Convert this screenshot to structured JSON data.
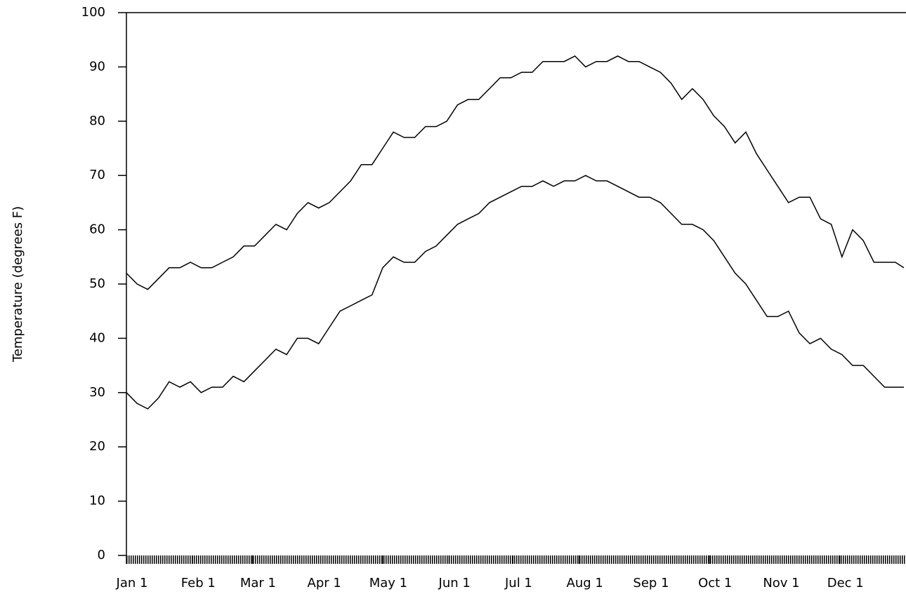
{
  "chart_data": {
    "type": "line",
    "y_label": "Temperature (degrees F)",
    "x": [
      1,
      6,
      11,
      16,
      21,
      26,
      31,
      36,
      41,
      46,
      51,
      56,
      61,
      66,
      71,
      76,
      81,
      86,
      91,
      96,
      101,
      106,
      111,
      116,
      121,
      126,
      131,
      136,
      141,
      146,
      151,
      156,
      161,
      166,
      171,
      176,
      181,
      186,
      191,
      196,
      201,
      206,
      211,
      216,
      221,
      226,
      231,
      236,
      241,
      246,
      251,
      256,
      261,
      266,
      271,
      276,
      281,
      286,
      291,
      296,
      301,
      306,
      311,
      316,
      321,
      326,
      331,
      336,
      341,
      346,
      351,
      356,
      361,
      365
    ],
    "series": [
      {
        "color": "#000000",
        "values": [
          52,
          50,
          49,
          51,
          53,
          53,
          54,
          53,
          53,
          54,
          55,
          57,
          57,
          59,
          61,
          60,
          63,
          65,
          64,
          65,
          67,
          69,
          72,
          72,
          75,
          78,
          77,
          77,
          79,
          79,
          80,
          83,
          84,
          84,
          86,
          88,
          88,
          89,
          89,
          91,
          91,
          91,
          92,
          90,
          91,
          91,
          92,
          91,
          91,
          90,
          89,
          87,
          84,
          86,
          84,
          81,
          79,
          76,
          78,
          74,
          71,
          68,
          65,
          66,
          66,
          62,
          61,
          55,
          60,
          58,
          54,
          54,
          54,
          53
        ]
      },
      {
        "color": "#000000",
        "values": [
          30,
          28,
          27,
          29,
          32,
          31,
          32,
          30,
          31,
          31,
          33,
          32,
          34,
          36,
          38,
          37,
          40,
          40,
          39,
          42,
          45,
          46,
          47,
          48,
          53,
          55,
          54,
          54,
          56,
          57,
          59,
          61,
          62,
          63,
          65,
          66,
          67,
          68,
          68,
          69,
          68,
          69,
          69,
          70,
          69,
          69,
          68,
          67,
          66,
          66,
          65,
          63,
          61,
          61,
          60,
          58,
          55,
          52,
          50,
          47,
          44,
          44,
          45,
          41,
          39,
          40,
          38,
          37,
          35,
          35,
          33,
          31,
          31,
          31
        ]
      }
    ],
    "xlim": [
      1,
      366
    ],
    "xticks": [
      {
        "value": 1,
        "label": "Jan 1"
      },
      {
        "value": 32,
        "label": "Feb 1"
      },
      {
        "value": 60,
        "label": "Mar 1"
      },
      {
        "value": 91,
        "label": "Apr 1"
      },
      {
        "value": 121,
        "label": "May 1"
      },
      {
        "value": 152,
        "label": "Jun 1"
      },
      {
        "value": 182,
        "label": "Jul 1"
      },
      {
        "value": 213,
        "label": "Aug 1"
      },
      {
        "value": 244,
        "label": "Sep 1"
      },
      {
        "value": 274,
        "label": "Oct 1"
      },
      {
        "value": 305,
        "label": "Nov 1"
      },
      {
        "value": 335,
        "label": "Dec 1"
      }
    ],
    "ylim": [
      0,
      100
    ],
    "yticks": [
      0,
      10,
      20,
      30,
      40,
      50,
      60,
      70,
      80,
      90,
      100
    ],
    "grid": false
  }
}
